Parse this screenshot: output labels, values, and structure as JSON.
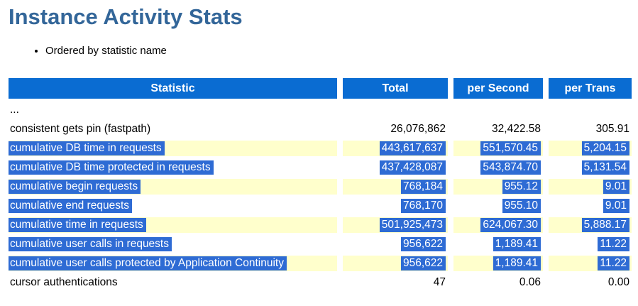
{
  "page": {
    "title": "Instance Activity Stats",
    "note": "Ordered by statistic name"
  },
  "colors": {
    "title_text": "#336699",
    "header_bg": "#0a6cd2",
    "header_text": "#ffffff",
    "shaded_row_bg": "#ffffcc",
    "selection_bg": "#2e6bd4",
    "selection_text": "#ffffff"
  },
  "table": {
    "columns": [
      {
        "label": "Statistic"
      },
      {
        "label": "Total"
      },
      {
        "label": "per Second"
      },
      {
        "label": "per Trans"
      }
    ],
    "rows": [
      {
        "statistic": "...",
        "total": "",
        "per_second": "",
        "per_trans": "",
        "shaded": false,
        "highlighted": false
      },
      {
        "statistic": "consistent gets pin (fastpath)",
        "total": "26,076,862",
        "per_second": "32,422.58",
        "per_trans": "305.91",
        "shaded": false,
        "highlighted": false
      },
      {
        "statistic": "cumulative DB time in requests",
        "total": "443,617,637",
        "per_second": "551,570.45",
        "per_trans": "5,204.15",
        "shaded": true,
        "highlighted": true
      },
      {
        "statistic": "cumulative DB time protected in requests",
        "total": "437,428,087",
        "per_second": "543,874.70",
        "per_trans": "5,131.54",
        "shaded": false,
        "highlighted": true
      },
      {
        "statistic": "cumulative begin requests",
        "total": "768,184",
        "per_second": "955.12",
        "per_trans": "9.01",
        "shaded": true,
        "highlighted": true
      },
      {
        "statistic": "cumulative end requests",
        "total": "768,170",
        "per_second": "955.10",
        "per_trans": "9.01",
        "shaded": false,
        "highlighted": true
      },
      {
        "statistic": "cumulative time in requests",
        "total": "501,925,473",
        "per_second": "624,067.30",
        "per_trans": "5,888.17",
        "shaded": true,
        "highlighted": true
      },
      {
        "statistic": "cumulative user calls in requests",
        "total": "956,622",
        "per_second": "1,189.41",
        "per_trans": "11.22",
        "shaded": false,
        "highlighted": true
      },
      {
        "statistic": "cumulative user calls protected by Application Continuity",
        "total": "956,622",
        "per_second": "1,189.41",
        "per_trans": "11.22",
        "shaded": true,
        "highlighted": true
      },
      {
        "statistic": "cursor authentications",
        "total": "47",
        "per_second": "0.06",
        "per_trans": "0.00",
        "shaded": false,
        "highlighted": false
      }
    ]
  }
}
